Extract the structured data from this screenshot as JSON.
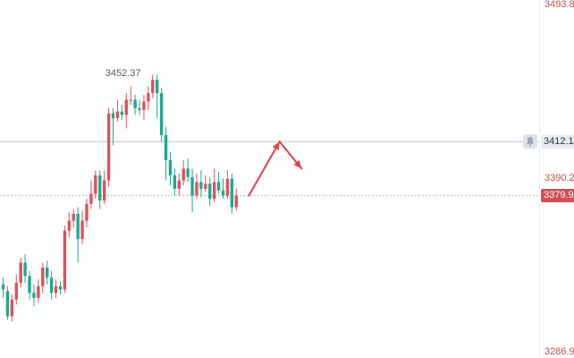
{
  "chart_data": {
    "type": "candlestick",
    "title": "",
    "xlabel": "",
    "ylabel": "",
    "ylim": [
      3286.9,
      3493.8
    ],
    "y_axis_labels": {
      "top": "3493.8",
      "bottom": "3286.9",
      "level": "3390.2"
    },
    "horizontal_lines": [
      {
        "value": 3412.1,
        "label": "3412.1",
        "style": "solid"
      },
      {
        "value": 3379.9,
        "label": "3379.9",
        "style": "dashed"
      }
    ],
    "annotations": [
      {
        "type": "max-label",
        "text": "3452.37",
        "value": 3452.37
      }
    ],
    "arrow_path": [
      [
        0,
        3379.9
      ],
      [
        7,
        3412.1
      ],
      [
        12,
        3396.0
      ]
    ],
    "colors": {
      "up": "#e0515b",
      "down": "#1fa98e",
      "grid": "#cfd3d9",
      "axis_text": "#b9524b",
      "last_badge": "#d94c55"
    },
    "candles": [
      [
        3327,
        3324,
        3331,
        3319
      ],
      [
        3323,
        3308,
        3326,
        3306
      ],
      [
        3308,
        3318,
        3321,
        3305
      ],
      [
        3318,
        3328,
        3333,
        3315
      ],
      [
        3328,
        3340,
        3343,
        3325
      ],
      [
        3340,
        3332,
        3345,
        3328
      ],
      [
        3332,
        3322,
        3335,
        3318
      ],
      [
        3322,
        3319,
        3327,
        3314
      ],
      [
        3319,
        3326,
        3330,
        3316
      ],
      [
        3326,
        3337,
        3340,
        3322
      ],
      [
        3337,
        3331,
        3341,
        3327
      ],
      [
        3331,
        3322,
        3335,
        3318
      ],
      [
        3322,
        3326,
        3330,
        3319
      ],
      [
        3326,
        3324,
        3329,
        3321
      ],
      [
        3324,
        3359,
        3362,
        3322
      ],
      [
        3359,
        3365,
        3370,
        3355
      ],
      [
        3365,
        3369,
        3372,
        3361
      ],
      [
        3369,
        3354,
        3373,
        3340
      ],
      [
        3354,
        3365,
        3371,
        3351
      ],
      [
        3365,
        3375,
        3378,
        3361
      ],
      [
        3375,
        3381,
        3389,
        3372
      ],
      [
        3381,
        3392,
        3395,
        3378
      ],
      [
        3392,
        3377,
        3395,
        3372
      ],
      [
        3377,
        3389,
        3395,
        3375
      ],
      [
        3389,
        3429,
        3432,
        3385
      ],
      [
        3429,
        3426,
        3432,
        3410
      ],
      [
        3426,
        3430,
        3437,
        3424
      ],
      [
        3430,
        3428,
        3434,
        3425
      ],
      [
        3428,
        3437,
        3441,
        3420
      ],
      [
        3437,
        3437,
        3445,
        3434
      ],
      [
        3437,
        3432,
        3440,
        3428
      ],
      [
        3432,
        3431,
        3437,
        3428
      ],
      [
        3431,
        3436,
        3440,
        3425
      ],
      [
        3436,
        3441,
        3445,
        3431
      ],
      [
        3441,
        3449,
        3452,
        3438
      ],
      [
        3449,
        3441,
        3452,
        3426
      ],
      [
        3441,
        3416,
        3444,
        3412
      ],
      [
        3416,
        3401,
        3421,
        3389
      ],
      [
        3401,
        3392,
        3406,
        3386
      ],
      [
        3392,
        3384,
        3396,
        3380
      ],
      [
        3384,
        3389,
        3393,
        3380
      ],
      [
        3389,
        3396,
        3401,
        3386
      ],
      [
        3396,
        3391,
        3402,
        3388
      ],
      [
        3391,
        3380,
        3396,
        3370
      ],
      [
        3380,
        3388,
        3393,
        3378
      ],
      [
        3388,
        3384,
        3395,
        3379
      ],
      [
        3384,
        3387,
        3392,
        3382
      ],
      [
        3387,
        3378,
        3391,
        3374
      ],
      [
        3378,
        3388,
        3396,
        3376
      ],
      [
        3388,
        3383,
        3394,
        3381
      ],
      [
        3383,
        3380,
        3390,
        3378
      ],
      [
        3380,
        3390,
        3395,
        3378
      ],
      [
        3390,
        3373,
        3393,
        3369
      ],
      [
        3373,
        3380,
        3384,
        3371
      ]
    ]
  }
}
